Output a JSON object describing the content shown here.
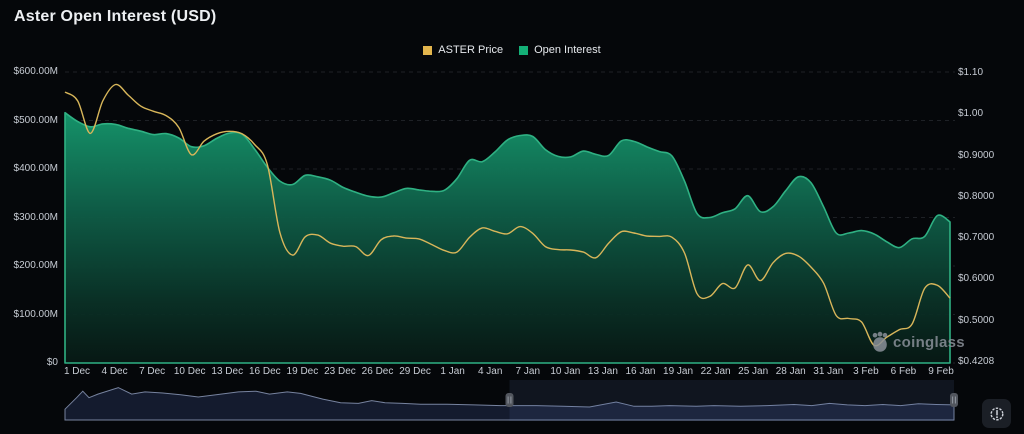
{
  "header": {
    "title": "Aster Open Interest (USD)"
  },
  "legend": [
    {
      "label": "ASTER Price",
      "color": "#e3b54d"
    },
    {
      "label": "Open Interest",
      "color": "#14b077"
    }
  ],
  "watermark": {
    "text": "coinglass"
  },
  "controls": {
    "settings_button": "chart-settings"
  },
  "chart_data": {
    "type": "area+line",
    "title": "Aster Open Interest (USD)",
    "grid": "horizontal-dashed",
    "legend_position": "top-center",
    "x_axis": {
      "tick_labels": [
        "1 Dec",
        "4 Dec",
        "7 Dec",
        "10 Dec",
        "13 Dec",
        "16 Dec",
        "19 Dec",
        "23 Dec",
        "26 Dec",
        "29 Dec",
        "1 Jan",
        "4 Jan",
        "7 Jan",
        "10 Jan",
        "13 Jan",
        "16 Jan",
        "19 Jan",
        "22 Jan",
        "25 Jan",
        "28 Jan",
        "31 Jan",
        "3 Feb",
        "6 Feb",
        "9 Feb"
      ]
    },
    "dates": [
      "1 Dec",
      "2 Dec",
      "3 Dec",
      "4 Dec",
      "5 Dec",
      "6 Dec",
      "7 Dec",
      "8 Dec",
      "9 Dec",
      "10 Dec",
      "11 Dec",
      "12 Dec",
      "13 Dec",
      "14 Dec",
      "15 Dec",
      "16 Dec",
      "17 Dec",
      "18 Dec",
      "19 Dec",
      "20 Dec",
      "21 Dec",
      "22 Dec",
      "23 Dec",
      "24 Dec",
      "25 Dec",
      "26 Dec",
      "27 Dec",
      "28 Dec",
      "29 Dec",
      "30 Dec",
      "31 Dec",
      "1 Jan",
      "2 Jan",
      "3 Jan",
      "4 Jan",
      "5 Jan",
      "6 Jan",
      "7 Jan",
      "8 Jan",
      "9 Jan",
      "10 Jan",
      "11 Jan",
      "12 Jan",
      "13 Jan",
      "14 Jan",
      "15 Jan",
      "16 Jan",
      "17 Jan",
      "18 Jan",
      "19 Jan",
      "20 Jan",
      "21 Jan",
      "22 Jan",
      "23 Jan",
      "24 Jan",
      "25 Jan",
      "26 Jan",
      "27 Jan",
      "28 Jan",
      "29 Jan",
      "30 Jan",
      "31 Jan",
      "1 Feb",
      "2 Feb",
      "3 Feb",
      "4 Feb",
      "5 Feb",
      "6 Feb",
      "7 Feb",
      "8 Feb",
      "9 Feb"
    ],
    "left_axis": {
      "series": "Open Interest",
      "tick_labels": [
        "$600.00M",
        "$500.00M",
        "$400.00M",
        "$300.00M",
        "$200.00M",
        "$100.00M",
        "$0"
      ],
      "min": 0,
      "max": 600,
      "unit": "millions USD"
    },
    "right_axis": {
      "series": "ASTER Price",
      "tick_labels": [
        "$1.10",
        "$1.00",
        "$0.9000",
        "$0.8000",
        "$0.7000",
        "$0.6000",
        "$0.5000",
        "$0.4208"
      ],
      "min": 0.4208,
      "max": 1.1,
      "unit": "USD"
    },
    "series": [
      {
        "name": "Open Interest",
        "type": "area",
        "axis": "left",
        "stroke": "#2fb183",
        "unit": "millions USD",
        "values": [
          516,
          498,
          487,
          493,
          492,
          484,
          478,
          471,
          473,
          464,
          446,
          448,
          463,
          474,
          472,
          441,
          404,
          375,
          368,
          387,
          384,
          377,
          362,
          352,
          344,
          342,
          351,
          360,
          357,
          354,
          356,
          380,
          418,
          415,
          435,
          460,
          469,
          467,
          440,
          426,
          425,
          437,
          430,
          428,
          458,
          457,
          446,
          436,
          427,
          375,
          308,
          300,
          310,
          318,
          345,
          312,
          322,
          355,
          384,
          372,
          322,
          268,
          268,
          273,
          266,
          250,
          238,
          256,
          261,
          304,
          291
        ]
      },
      {
        "name": "ASTER Price",
        "type": "line",
        "axis": "right",
        "stroke": "#d8b65a",
        "unit": "USD",
        "values": [
          1.055,
          1.035,
          0.958,
          1.035,
          1.073,
          1.048,
          1.022,
          1.01,
          1.0,
          0.972,
          0.908,
          0.94,
          0.957,
          0.963,
          0.957,
          0.932,
          0.885,
          0.725,
          0.672,
          0.715,
          0.719,
          0.7,
          0.693,
          0.692,
          0.671,
          0.708,
          0.717,
          0.712,
          0.71,
          0.697,
          0.683,
          0.679,
          0.714,
          0.736,
          0.728,
          0.722,
          0.739,
          0.723,
          0.692,
          0.685,
          0.684,
          0.679,
          0.666,
          0.7,
          0.727,
          0.724,
          0.717,
          0.716,
          0.714,
          0.677,
          0.581,
          0.575,
          0.605,
          0.595,
          0.649,
          0.612,
          0.654,
          0.676,
          0.67,
          0.644,
          0.606,
          0.53,
          0.523,
          0.515,
          0.46,
          0.479,
          0.497,
          0.51,
          0.594,
          0.601,
          0.571
        ]
      }
    ],
    "navigator": {
      "selection": [
        0.5,
        1.0
      ],
      "points": [
        [
          0,
          0.3
        ],
        [
          0.013,
          0.62
        ],
        [
          0.02,
          0.8
        ],
        [
          0.027,
          0.62
        ],
        [
          0.037,
          0.72
        ],
        [
          0.06,
          0.9
        ],
        [
          0.075,
          0.72
        ],
        [
          0.09,
          0.78
        ],
        [
          0.11,
          0.75
        ],
        [
          0.13,
          0.7
        ],
        [
          0.15,
          0.64
        ],
        [
          0.17,
          0.7
        ],
        [
          0.195,
          0.78
        ],
        [
          0.215,
          0.8
        ],
        [
          0.23,
          0.72
        ],
        [
          0.25,
          0.78
        ],
        [
          0.265,
          0.74
        ],
        [
          0.29,
          0.58
        ],
        [
          0.31,
          0.48
        ],
        [
          0.33,
          0.46
        ],
        [
          0.345,
          0.54
        ],
        [
          0.36,
          0.48
        ],
        [
          0.38,
          0.46
        ],
        [
          0.4,
          0.44
        ],
        [
          0.43,
          0.44
        ],
        [
          0.46,
          0.42
        ],
        [
          0.49,
          0.4
        ],
        [
          0.53,
          0.4
        ],
        [
          0.56,
          0.38
        ],
        [
          0.59,
          0.36
        ],
        [
          0.62,
          0.5
        ],
        [
          0.64,
          0.38
        ],
        [
          0.66,
          0.38
        ],
        [
          0.68,
          0.4
        ],
        [
          0.71,
          0.38
        ],
        [
          0.73,
          0.4
        ],
        [
          0.76,
          0.38
        ],
        [
          0.79,
          0.4
        ],
        [
          0.82,
          0.43
        ],
        [
          0.84,
          0.4
        ],
        [
          0.86,
          0.46
        ],
        [
          0.88,
          0.42
        ],
        [
          0.9,
          0.4
        ],
        [
          0.92,
          0.43
        ],
        [
          0.94,
          0.4
        ],
        [
          0.96,
          0.45
        ],
        [
          0.98,
          0.43
        ],
        [
          1,
          0.42
        ]
      ]
    },
    "colors": {
      "background": "#05070a",
      "grid": "#33373d",
      "oi_fill_top": "#15956b",
      "oi_fill_bottom": "#071a15",
      "navigator_fill": "#141b2e",
      "navigator_stroke": "#77839f",
      "navigator_selection": "rgba(96,118,178,0.13)"
    }
  }
}
